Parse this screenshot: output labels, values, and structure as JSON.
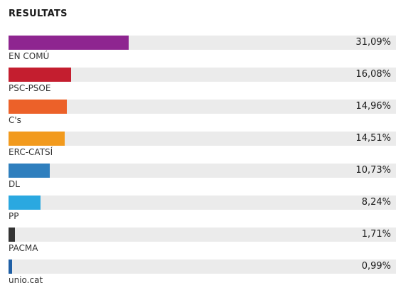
{
  "header": {
    "title": "RESULTATS"
  },
  "colors": {
    "track": "#ebebeb",
    "text": "#1a1a1a",
    "label": "#333333"
  },
  "chart_data": {
    "type": "bar",
    "orientation": "horizontal",
    "title": "RESULTATS",
    "xlabel": "",
    "ylabel": "",
    "xlim": [
      0,
      100
    ],
    "grid": false,
    "legend": "none",
    "categories": [
      "EN COMÚ",
      "PSC-PSOE",
      "C's",
      "ERC-CATSÍ",
      "DL",
      "PP",
      "PACMA",
      "unio.cat"
    ],
    "values": [
      31.09,
      16.08,
      14.96,
      14.51,
      10.73,
      8.24,
      1.71,
      0.99
    ],
    "value_labels": [
      "31,09%",
      "16,08%",
      "14,96%",
      "14,51%",
      "10,73%",
      "8,24%",
      "1,71%",
      "0,99%"
    ],
    "bar_colors": [
      "#8e2590",
      "#c41e2f",
      "#ec6129",
      "#f29a1d",
      "#2f7fbe",
      "#2aa8e0",
      "#333333",
      "#1f5fa5"
    ]
  }
}
